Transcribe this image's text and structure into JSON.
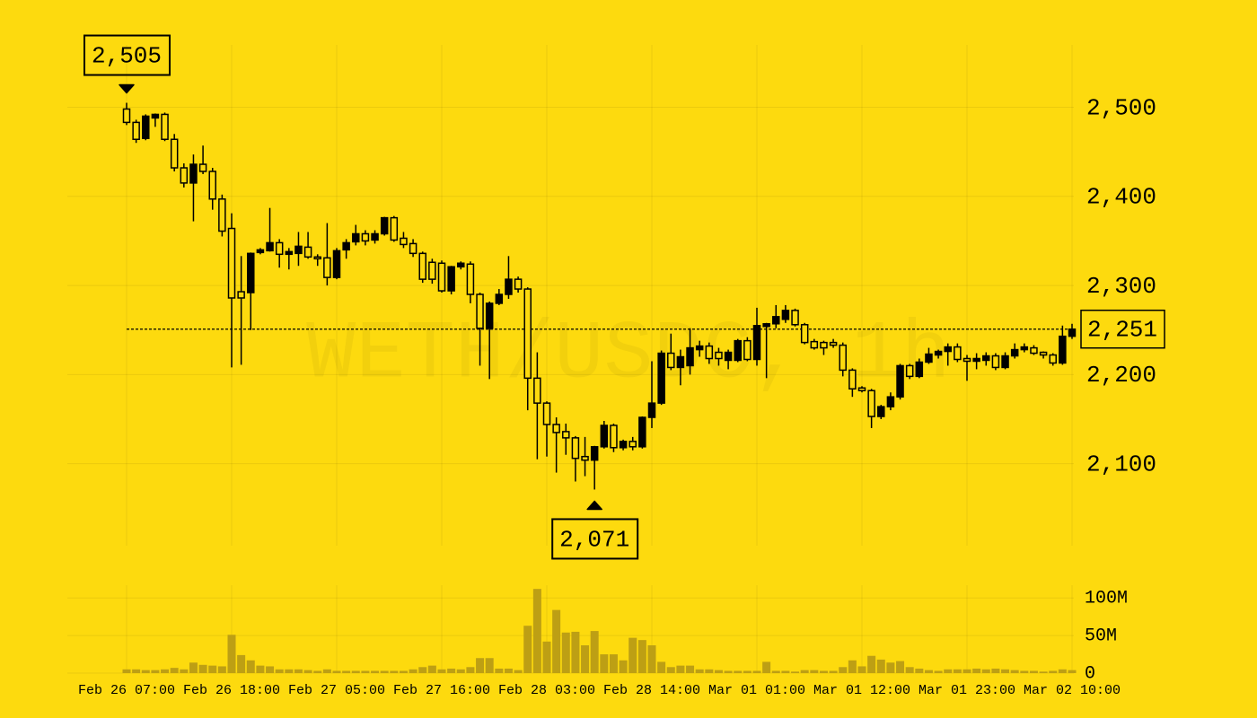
{
  "chart_data": {
    "type": "candlestick",
    "watermark": "WETH/USDC, 1h",
    "categories": [
      "Feb 26 07:00",
      null,
      null,
      null,
      null,
      null,
      null,
      null,
      null,
      null,
      null,
      "Feb 26 18:00",
      null,
      null,
      null,
      null,
      null,
      null,
      null,
      null,
      null,
      null,
      "Feb 27 05:00",
      null,
      null,
      null,
      null,
      null,
      null,
      null,
      null,
      null,
      null,
      "Feb 27 16:00",
      null,
      null,
      null,
      null,
      null,
      null,
      null,
      null,
      null,
      null,
      "Feb 28 03:00",
      null,
      null,
      null,
      null,
      null,
      null,
      null,
      null,
      null,
      null,
      "Feb 28 14:00",
      null,
      null,
      null,
      null,
      null,
      null,
      null,
      null,
      null,
      null,
      "Mar 01 01:00",
      null,
      null,
      null,
      null,
      null,
      null,
      null,
      null,
      null,
      null,
      "Mar 01 12:00",
      null,
      null,
      null,
      null,
      null,
      null,
      null,
      null,
      null,
      null,
      "Mar 01 23:00",
      null,
      null,
      null,
      null,
      null,
      null,
      null,
      null,
      null,
      null,
      "Mar 02 10:00"
    ],
    "open": [
      2498,
      2483,
      2465,
      2488,
      2492,
      2464,
      2432,
      2415,
      2436,
      2428,
      2397,
      2364,
      2293,
      2292,
      2337,
      2339,
      2348,
      2335,
      2336,
      2343,
      2332,
      2331,
      2309,
      2340,
      2349,
      2358,
      2351,
      2358,
      2376,
      2353,
      2347,
      2336,
      2326,
      2325,
      2294,
      2321,
      2324,
      2290,
      2252,
      2280,
      2290,
      2307,
      2296,
      2196,
      2168,
      2144,
      2136,
      2129,
      2108,
      2104,
      2119,
      2143,
      2118,
      2125,
      2119,
      2152,
      2168,
      2224,
      2208,
      2210,
      2228,
      2232,
      2225,
      2216,
      2216,
      2238,
      2217,
      2254,
      2257,
      2262,
      2272,
      2256,
      2237,
      2236,
      2236,
      2233,
      2205,
      2185,
      2182,
      2153,
      2164,
      2175,
      2210,
      2198,
      2214,
      2222,
      2226,
      2231,
      2218,
      2215,
      2216,
      2221,
      2208,
      2221,
      2228,
      2230,
      2225,
      2222,
      2213,
      2243
    ],
    "high": [
      2505,
      2486,
      2492,
      2493,
      2494,
      2470,
      2437,
      2447,
      2457,
      2432,
      2402,
      2381,
      2333,
      2337,
      2342,
      2387,
      2352,
      2342,
      2360,
      2360,
      2335,
      2370,
      2342,
      2352,
      2368,
      2362,
      2362,
      2377,
      2378,
      2360,
      2352,
      2338,
      2330,
      2328,
      2322,
      2327,
      2327,
      2292,
      2282,
      2296,
      2333,
      2310,
      2298,
      2225,
      2170,
      2152,
      2145,
      2131,
      2130,
      2120,
      2148,
      2145,
      2127,
      2130,
      2153,
      2215,
      2227,
      2246,
      2228,
      2252,
      2238,
      2236,
      2230,
      2228,
      2240,
      2242,
      2275,
      2258,
      2278,
      2278,
      2274,
      2258,
      2240,
      2238,
      2240,
      2236,
      2207,
      2187,
      2184,
      2166,
      2180,
      2212,
      2212,
      2218,
      2230,
      2228,
      2235,
      2235,
      2222,
      2224,
      2225,
      2224,
      2225,
      2235,
      2235,
      2233,
      2226,
      2224,
      2255,
      2257
    ],
    "low": [
      2480,
      2460,
      2463,
      2478,
      2462,
      2428,
      2410,
      2372,
      2425,
      2385,
      2355,
      2208,
      2211,
      2250,
      2335,
      2338,
      2320,
      2318,
      2322,
      2330,
      2322,
      2300,
      2307,
      2330,
      2345,
      2345,
      2347,
      2356,
      2349,
      2342,
      2332,
      2303,
      2302,
      2292,
      2290,
      2318,
      2280,
      2210,
      2195,
      2278,
      2285,
      2292,
      2160,
      2105,
      2108,
      2090,
      2110,
      2080,
      2086,
      2071,
      2117,
      2113,
      2115,
      2115,
      2117,
      2140,
      2166,
      2205,
      2188,
      2200,
      2220,
      2212,
      2210,
      2206,
      2214,
      2215,
      2210,
      2196,
      2252,
      2258,
      2254,
      2234,
      2228,
      2222,
      2230,
      2198,
      2175,
      2180,
      2140,
      2150,
      2160,
      2172,
      2195,
      2196,
      2212,
      2218,
      2210,
      2214,
      2193,
      2206,
      2210,
      2205,
      2206,
      2218,
      2225,
      2222,
      2218,
      2210,
      2211,
      2240
    ],
    "close": [
      2483,
      2464,
      2490,
      2492,
      2464,
      2432,
      2415,
      2436,
      2428,
      2397,
      2361,
      2286,
      2286,
      2336,
      2340,
      2348,
      2335,
      2338,
      2344,
      2332,
      2330,
      2309,
      2339,
      2348,
      2358,
      2350,
      2358,
      2376,
      2351,
      2346,
      2336,
      2307,
      2307,
      2294,
      2321,
      2325,
      2290,
      2252,
      2280,
      2290,
      2307,
      2296,
      2196,
      2168,
      2144,
      2135,
      2129,
      2106,
      2104,
      2119,
      2143,
      2118,
      2125,
      2119,
      2152,
      2168,
      2224,
      2208,
      2220,
      2230,
      2232,
      2218,
      2218,
      2225,
      2238,
      2217,
      2255,
      2257,
      2265,
      2272,
      2256,
      2236,
      2230,
      2230,
      2233,
      2205,
      2184,
      2182,
      2153,
      2164,
      2175,
      2210,
      2198,
      2214,
      2223,
      2226,
      2231,
      2217,
      2215,
      2218,
      2221,
      2208,
      2221,
      2228,
      2231,
      2224,
      2222,
      2213,
      2243,
      2251
    ],
    "ylim": [
      2008,
      2570
    ],
    "yticks": [
      {
        "value": 2100,
        "label": "2,100"
      },
      {
        "value": 2200,
        "label": "2,200"
      },
      {
        "value": 2300,
        "label": "2,300"
      },
      {
        "value": 2400,
        "label": "2,400"
      },
      {
        "value": 2500,
        "label": "2,500"
      }
    ],
    "grid": true,
    "max_marker": {
      "value": 2505,
      "label": "2,505"
    },
    "min_marker": {
      "value": 2071,
      "label": "2,071"
    },
    "last_price": {
      "value": 2251,
      "label": "2,251"
    },
    "volume": {
      "values": [
        5,
        5,
        4,
        4,
        5,
        7,
        5,
        14,
        11,
        10,
        9,
        51,
        24,
        17,
        10,
        9,
        5,
        5,
        5,
        4,
        3,
        5,
        3,
        3,
        3,
        3,
        3,
        3,
        3,
        3,
        5,
        8,
        10,
        5,
        6,
        5,
        8,
        20,
        20,
        6,
        6,
        4,
        63,
        112,
        42,
        84,
        54,
        55,
        37,
        56,
        25,
        25,
        17,
        47,
        44,
        37,
        15,
        8,
        10,
        10,
        5,
        5,
        4,
        3,
        3,
        3,
        3,
        15,
        3,
        3,
        2,
        4,
        4,
        3,
        3,
        8,
        17,
        9,
        23,
        18,
        14,
        16,
        8,
        6,
        4,
        3,
        5,
        5,
        5,
        6,
        5,
        6,
        5,
        4,
        3,
        3,
        2,
        3,
        5,
        4
      ],
      "color": "#bd9f14",
      "ylim": [
        0,
        117
      ],
      "yticks": [
        0,
        {
          "value": 50,
          "label": "50M"
        },
        {
          "value": 100,
          "label": "100M"
        }
      ]
    }
  }
}
